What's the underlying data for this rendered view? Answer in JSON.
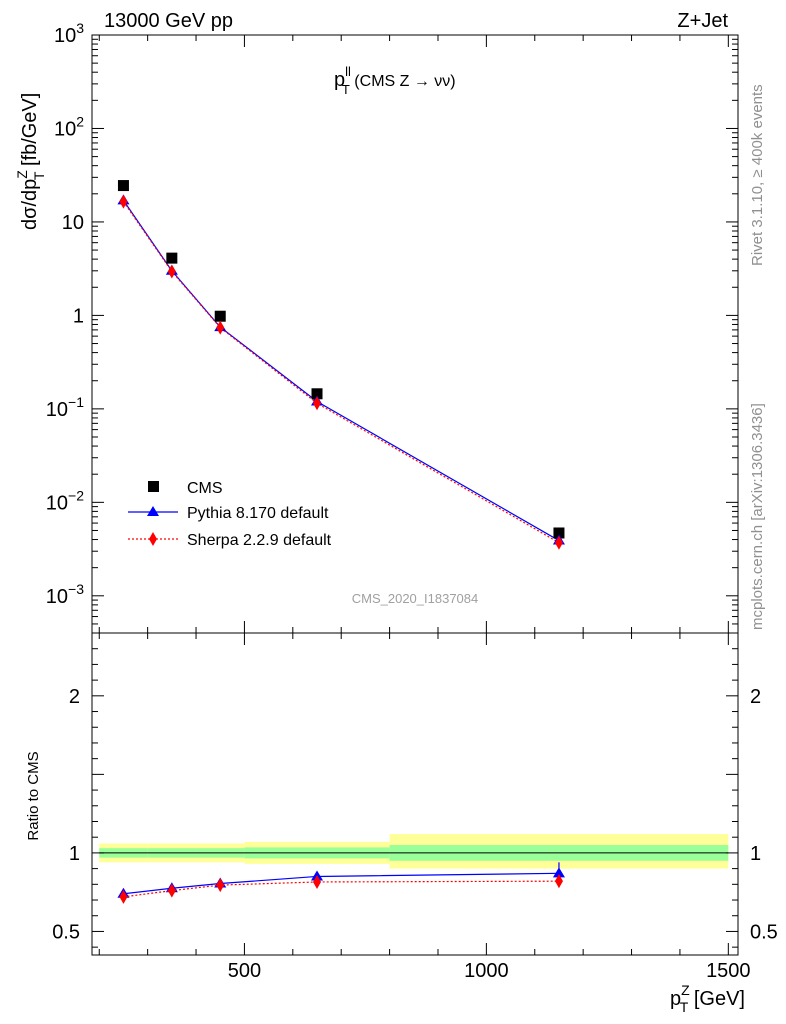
{
  "header": {
    "left": "13000 GeV pp",
    "right": "Z+Jet"
  },
  "side_text": {
    "top": "Rivet 3.1.10, ≥ 400k events",
    "bottom": "mcplots.cern.ch [arXiv:1306.3436]"
  },
  "chart_data": [
    {
      "type": "scatter",
      "panel": "main",
      "title": "p_T^ll (CMS Z → νν)",
      "title_parts": {
        "main": "p",
        "sup": "ll",
        "sub": "T",
        "rest": " (CMS Z → νν)"
      },
      "ylabel": "dσ/dp_T^Z [fb/GeV]",
      "ylabel_parts": {
        "pre": "dσ/dp",
        "sup": "Z",
        "sub": "T",
        "post": " [fb/GeV]"
      },
      "yscale": "log",
      "ylim": [
        0.0004,
        1000
      ],
      "xlim": [
        185,
        1520
      ],
      "ytick_labels": [
        {
          "value": 1000,
          "base": "10",
          "exp": "3"
        },
        {
          "value": 100,
          "base": "10",
          "exp": "2"
        },
        {
          "value": 10,
          "base": "10",
          "exp": ""
        },
        {
          "value": 1,
          "base": "1",
          "exp": ""
        },
        {
          "value": 0.1,
          "base": "10",
          "exp": "−1"
        },
        {
          "value": 0.01,
          "base": "10",
          "exp": "−2"
        },
        {
          "value": 0.001,
          "base": "10",
          "exp": "−3"
        }
      ],
      "watermark": "CMS_2020_I1837084",
      "legend_position": "lower-left",
      "series": [
        {
          "name": "CMS",
          "color": "#000000",
          "marker": "square",
          "x": [
            250,
            350,
            450,
            650,
            1150
          ],
          "y": [
            24.5,
            4.1,
            0.98,
            0.145,
            0.0047
          ]
        },
        {
          "name": "Pythia 8.170 default",
          "color": "#0000ff",
          "marker": "triangle",
          "line": "solid",
          "x": [
            250,
            350,
            450,
            650,
            1150
          ],
          "y": [
            17.0,
            3.0,
            0.75,
            0.12,
            0.0039
          ]
        },
        {
          "name": "Sherpa 2.2.9 default",
          "color": "#ff0000",
          "marker": "diamond",
          "line": "dotted",
          "x": [
            250,
            350,
            450,
            650,
            1150
          ],
          "y": [
            16.5,
            2.95,
            0.74,
            0.115,
            0.0037
          ]
        }
      ]
    },
    {
      "type": "scatter",
      "panel": "ratio",
      "ylabel": "Ratio to CMS",
      "xlabel": "p_T^Z [GeV]",
      "xlabel_parts": {
        "main": "p",
        "sup": "Z",
        "sub": "T",
        "post": " [GeV]"
      },
      "ylim": [
        0.35,
        2.4
      ],
      "xlim": [
        185,
        1520
      ],
      "ytick_labels": [
        {
          "value": 0.5,
          "label": "0.5"
        },
        {
          "value": 1,
          "label": "1"
        },
        {
          "value": 2,
          "label": "2"
        }
      ],
      "xtick_labels": [
        {
          "value": 500,
          "label": "500"
        },
        {
          "value": 1000,
          "label": "1000"
        },
        {
          "value": 1500,
          "label": "1500"
        }
      ],
      "bands": [
        {
          "x0": 200,
          "x1": 300,
          "yellow": [
            0.94,
            1.06
          ],
          "green": [
            0.97,
            1.03
          ]
        },
        {
          "x0": 300,
          "x1": 400,
          "yellow": [
            0.94,
            1.06
          ],
          "green": [
            0.97,
            1.03
          ]
        },
        {
          "x0": 400,
          "x1": 500,
          "yellow": [
            0.94,
            1.06
          ],
          "green": [
            0.97,
            1.03
          ]
        },
        {
          "x0": 500,
          "x1": 800,
          "yellow": [
            0.93,
            1.07
          ],
          "green": [
            0.965,
            1.035
          ]
        },
        {
          "x0": 800,
          "x1": 1500,
          "yellow": [
            0.9,
            1.12
          ],
          "green": [
            0.95,
            1.05
          ]
        }
      ],
      "series": [
        {
          "name": "Pythia 8.170 default",
          "color": "#0000ff",
          "marker": "triangle",
          "line": "solid",
          "x": [
            250,
            350,
            450,
            650,
            1150
          ],
          "y": [
            0.74,
            0.775,
            0.805,
            0.85,
            0.87
          ],
          "err": [
            0.01,
            0.01,
            0.01,
            0.015,
            0.07
          ]
        },
        {
          "name": "Sherpa 2.2.9 default",
          "color": "#ff0000",
          "marker": "diamond",
          "line": "dotted",
          "x": [
            250,
            350,
            450,
            650,
            1150
          ],
          "y": [
            0.72,
            0.76,
            0.795,
            0.815,
            0.82
          ],
          "err": [
            0.01,
            0.01,
            0.01,
            0.015,
            0.04
          ]
        }
      ]
    }
  ]
}
